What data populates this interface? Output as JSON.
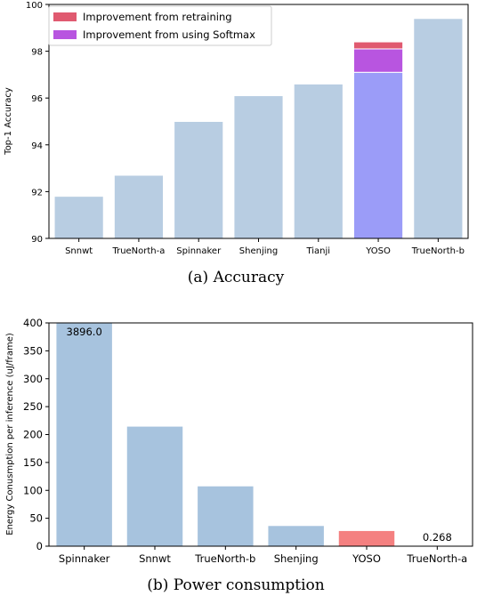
{
  "chart_data": [
    {
      "type": "bar",
      "caption": "(a) Accuracy",
      "ylabel": "Top-1 Accuracy",
      "ylim": [
        90,
        100
      ],
      "yticks": [
        90,
        92,
        94,
        96,
        98,
        100
      ],
      "categories": [
        "Snnwt",
        "TrueNorth-a",
        "Spinnaker",
        "Shenjing",
        "Tianji",
        "YOSO",
        "TrueNorth-b"
      ],
      "series": [
        {
          "values": [
            91.8,
            92.7,
            95.0,
            96.1,
            96.6,
            97.1,
            99.4
          ]
        },
        {
          "name": "Improvement from using Softmax",
          "values": [
            0,
            0,
            0,
            0,
            0,
            1.0,
            0
          ]
        },
        {
          "name": "Improvement from retraining",
          "values": [
            0,
            0,
            0,
            0,
            0,
            0.3,
            0
          ]
        }
      ],
      "legend": {
        "placement": "top-left"
      },
      "colors": {
        "base": "#b8cde2",
        "softmax": "#b855e0",
        "retraining": "#e05a70",
        "yoso_base": "#9b9cf8"
      }
    },
    {
      "type": "bar",
      "caption": "(b) Power consumption",
      "ylabel": "Energy Conusmption per inference (uJ/frame)",
      "ylim": [
        0,
        400
      ],
      "yticks": [
        0,
        50,
        100,
        150,
        200,
        250,
        300,
        350,
        400
      ],
      "categories": [
        "Spinnaker",
        "Snnwt",
        "TrueNorth-b",
        "Shenjing",
        "YOSO",
        "TrueNorth-a"
      ],
      "values": [
        3896.0,
        215,
        108,
        37,
        28,
        0.268
      ],
      "data_labels": [
        "3896.0",
        "",
        "",
        "",
        "",
        "0.268"
      ],
      "colors": {
        "base": "#a7c3de",
        "highlight": "#f48080"
      }
    }
  ]
}
